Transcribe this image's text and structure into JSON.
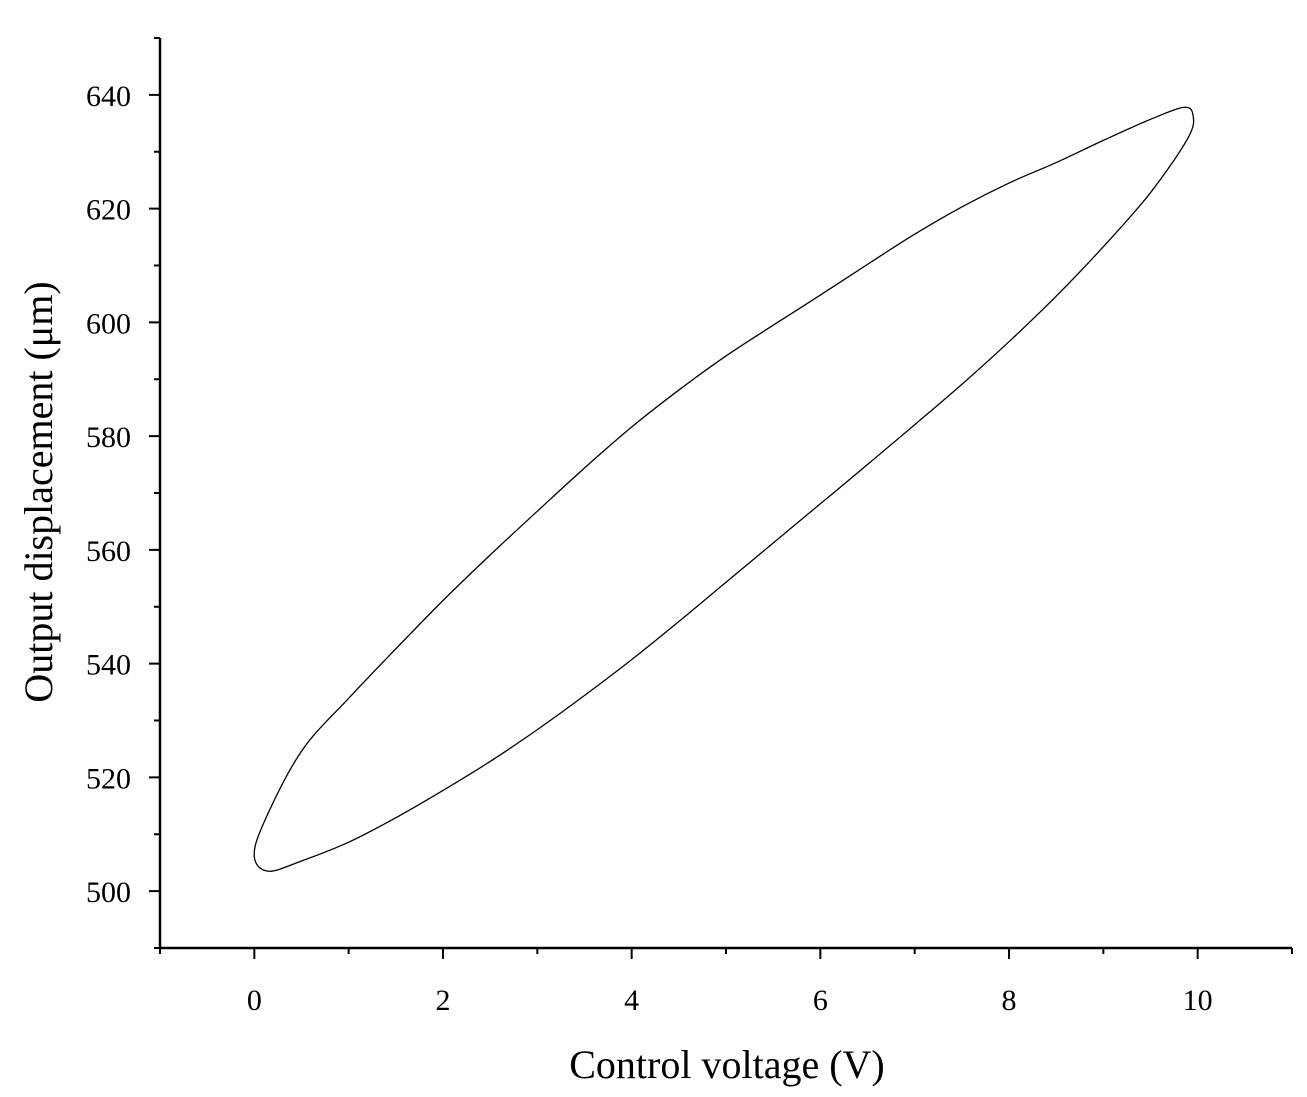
{
  "chart_data": {
    "type": "line",
    "title": "",
    "xlabel": "Control voltage (V)",
    "ylabel": "Output displacement (μm)",
    "xlim": [
      -1,
      11
    ],
    "ylim": [
      490,
      650
    ],
    "x_ticks": [
      0,
      2,
      4,
      6,
      8,
      10
    ],
    "x_tick_labels": [
      "0",
      "2",
      "4",
      "6",
      "8",
      "10"
    ],
    "y_ticks": [
      500,
      520,
      540,
      560,
      580,
      600,
      620,
      640
    ],
    "y_tick_labels": [
      "500",
      "520",
      "540",
      "560",
      "580",
      "600",
      "620",
      "640"
    ],
    "x_minor_step": 1,
    "y_minor_step": 10,
    "grid": false,
    "legend": "none",
    "line_color": "#000000",
    "series": [
      {
        "x": [
          0.15,
          0.5,
          1,
          1.5,
          2,
          2.5,
          3,
          3.5,
          4,
          4.5,
          5,
          5.5,
          6,
          6.5,
          7,
          7.5,
          8,
          8.5,
          9,
          9.5,
          9.9,
          9.95,
          9.85,
          9.5,
          9,
          8.5,
          8,
          7.5,
          7,
          6.5,
          6,
          5.5,
          5,
          4.5,
          4,
          3.5,
          3,
          2.5,
          2,
          1.5,
          1,
          0.5,
          0.1,
          0,
          0.15
        ],
        "y": [
          503.5,
          505.3,
          508.6,
          512.9,
          517.7,
          522.8,
          528.4,
          534.4,
          540.7,
          547.4,
          554.3,
          561.2,
          568.1,
          575,
          582,
          589.1,
          596.6,
          604.6,
          613.3,
          622.8,
          632.5,
          636.5,
          637.8,
          635.7,
          632,
          628.1,
          624.5,
          620.3,
          615.5,
          610.2,
          604.8,
          599.5,
          594.1,
          588.1,
          581.6,
          574.4,
          566.8,
          559.1,
          551.1,
          542.6,
          533.9,
          524.6,
          512,
          506,
          503.5
        ]
      }
    ]
  }
}
